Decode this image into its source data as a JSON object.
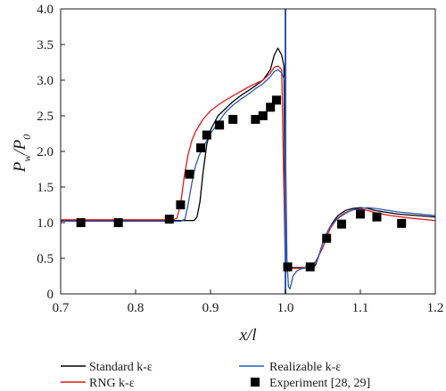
{
  "chart_data": {
    "type": "line",
    "xlabel": "x/l",
    "ylabel": "Pw/P0",
    "ylabel_main": "P",
    "ylabel_sub_w": "w",
    "ylabel_slash": "/P",
    "ylabel_sub_0": "0",
    "xlim": [
      0.7,
      1.2
    ],
    "ylim": [
      0,
      4.0
    ],
    "x_ticks": [
      "0.7",
      "0.8",
      "0.9",
      "1.0",
      "1.1",
      "1.2"
    ],
    "y_ticks": [
      "0",
      "0.5",
      "1.0",
      "1.5",
      "2.0",
      "2.5",
      "3.0",
      "3.5",
      "4.0"
    ],
    "grid": false,
    "legend_position": "bottom",
    "colors": {
      "standard": "#000000",
      "rng": "#e41a1c",
      "realizable": "#2b57b5",
      "experiment": "#000000",
      "shock_line": "#2b57b5"
    },
    "legend": {
      "standard": "Standard k-ε",
      "rng": "RNG k-ε",
      "realizable": "Realizable k-ε",
      "experiment": "Experiment [28, 29]"
    },
    "series": [
      {
        "name": "Standard k-ε",
        "key": "standard",
        "x": [
          0.7,
          0.86,
          0.878,
          0.882,
          0.886,
          0.89,
          0.895,
          0.9,
          0.91,
          0.92,
          0.93,
          0.94,
          0.95,
          0.96,
          0.97,
          0.98,
          0.985,
          0.99,
          0.995,
          0.998,
          1.0,
          1.003,
          1.006,
          1.01,
          1.015,
          1.02,
          1.025,
          1.03,
          1.035,
          1.04,
          1.045,
          1.05,
          1.055,
          1.06,
          1.065,
          1.07,
          1.08,
          1.09,
          1.1,
          1.11,
          1.12,
          1.15,
          1.2
        ],
        "y": [
          1.03,
          1.03,
          1.03,
          1.08,
          1.3,
          1.7,
          2.1,
          2.3,
          2.5,
          2.6,
          2.7,
          2.78,
          2.85,
          2.92,
          3.0,
          3.15,
          3.35,
          3.45,
          3.35,
          3.2,
          0.3,
          0.35,
          0.36,
          0.37,
          0.37,
          0.37,
          0.37,
          0.37,
          0.37,
          0.4,
          0.55,
          0.72,
          0.85,
          0.95,
          1.03,
          1.1,
          1.17,
          1.2,
          1.21,
          1.2,
          1.17,
          1.12,
          1.08
        ]
      },
      {
        "name": "RNG k-ε",
        "key": "rng",
        "x": [
          0.7,
          0.85,
          0.855,
          0.86,
          0.865,
          0.87,
          0.875,
          0.88,
          0.89,
          0.9,
          0.91,
          0.92,
          0.93,
          0.94,
          0.95,
          0.96,
          0.97,
          0.98,
          0.985,
          0.99,
          0.995,
          1.0,
          1.005,
          1.01,
          1.02,
          1.03,
          1.04,
          1.05,
          1.055,
          1.06,
          1.065,
          1.07,
          1.08,
          1.09,
          1.1,
          1.11,
          1.12,
          1.14,
          1.17,
          1.2
        ],
        "y": [
          1.04,
          1.04,
          1.06,
          1.25,
          1.65,
          1.95,
          2.15,
          2.28,
          2.45,
          2.57,
          2.65,
          2.72,
          2.78,
          2.84,
          2.9,
          2.95,
          3.0,
          3.1,
          3.18,
          3.2,
          3.15,
          0.3,
          0.35,
          0.36,
          0.36,
          0.37,
          0.45,
          0.65,
          0.8,
          0.92,
          1.0,
          1.07,
          1.14,
          1.18,
          1.19,
          1.17,
          1.14,
          1.1,
          1.06,
          1.03
        ]
      },
      {
        "name": "Realizable k-ε",
        "key": "realizable",
        "x": [
          0.7,
          0.86,
          0.866,
          0.87,
          0.875,
          0.88,
          0.885,
          0.89,
          0.9,
          0.91,
          0.92,
          0.93,
          0.94,
          0.95,
          0.96,
          0.97,
          0.98,
          0.985,
          0.99,
          0.995,
          0.999,
          1.002,
          1.004,
          1.006,
          1.008,
          1.01,
          1.015,
          1.02,
          1.03,
          1.04,
          1.045,
          1.05,
          1.055,
          1.06,
          1.07,
          1.08,
          1.09,
          1.1,
          1.11,
          1.12,
          1.15,
          1.2
        ],
        "y": [
          1.02,
          1.02,
          1.05,
          1.25,
          1.55,
          1.8,
          1.95,
          2.05,
          2.25,
          2.4,
          2.55,
          2.65,
          2.73,
          2.8,
          2.88,
          2.95,
          3.05,
          3.12,
          3.15,
          3.1,
          3.0,
          0.5,
          0.1,
          0.07,
          0.15,
          0.25,
          0.32,
          0.35,
          0.37,
          0.42,
          0.55,
          0.72,
          0.85,
          0.95,
          1.06,
          1.13,
          1.18,
          1.2,
          1.21,
          1.2,
          1.15,
          1.1
        ]
      }
    ],
    "experiment": {
      "name": "Experiment [28, 29]",
      "x": [
        0.727,
        0.777,
        0.845,
        0.86,
        0.872,
        0.887,
        0.895,
        0.912,
        0.93,
        0.96,
        0.97,
        0.98,
        0.988,
        1.003,
        1.033,
        1.055,
        1.075,
        1.1,
        1.122,
        1.155
      ],
      "y": [
        1.0,
        1.0,
        1.05,
        1.25,
        1.68,
        2.05,
        2.23,
        2.37,
        2.45,
        2.45,
        2.5,
        2.62,
        2.72,
        0.38,
        0.38,
        0.78,
        0.98,
        1.12,
        1.08,
        0.99
      ]
    },
    "shock_line_x": 1.0
  }
}
